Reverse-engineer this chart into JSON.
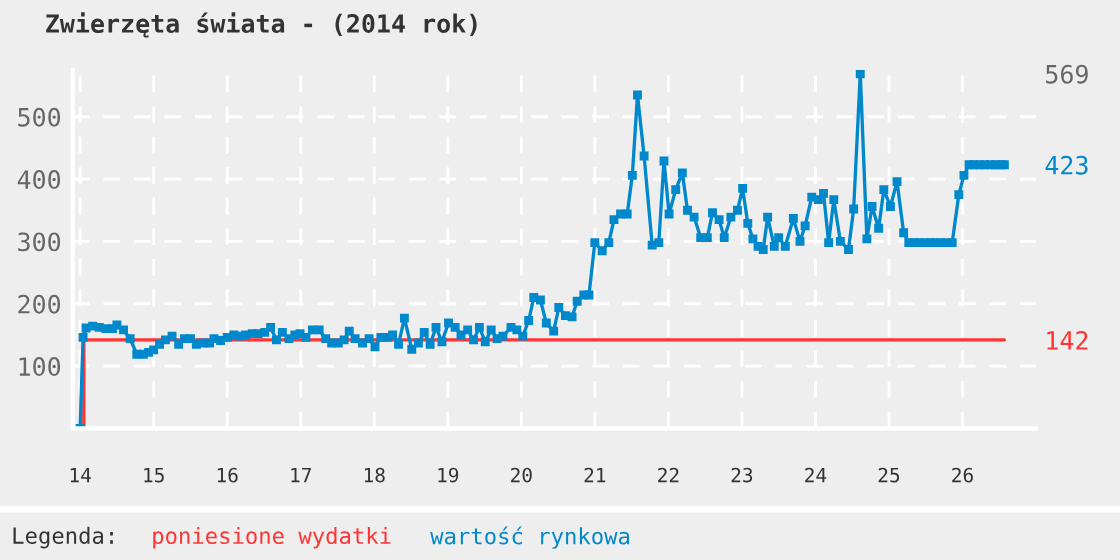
{
  "chart_data": {
    "type": "line",
    "title": "Zwierzęta świata - (2014 rok)",
    "legend_title": "Legenda:",
    "legend": "bottom",
    "grid": true,
    "marker": "square",
    "xlim": [
      13.9,
      27.0
    ],
    "ylim": [
      0,
      575
    ],
    "xticks": [
      14,
      15,
      16,
      17,
      18,
      19,
      20,
      21,
      22,
      23,
      24,
      25,
      26
    ],
    "yticks": [
      100,
      200,
      300,
      400,
      500
    ],
    "series": [
      {
        "name": "poniesione wydatki",
        "color": "#ff3333",
        "marker": "none",
        "x": [
          14.05,
          14.05,
          26.57
        ],
        "values": [
          0,
          142,
          142
        ]
      },
      {
        "name": "wartość rynkowa",
        "color": "#0088cc",
        "x": [
          14.0,
          14.04,
          14.08,
          14.17,
          14.26,
          14.35,
          14.44,
          14.5,
          14.59,
          14.68,
          14.77,
          14.86,
          14.93,
          15.0,
          15.08,
          15.16,
          15.25,
          15.34,
          15.42,
          15.5,
          15.58,
          15.67,
          15.76,
          15.82,
          15.91,
          16.0,
          16.09,
          16.18,
          16.25,
          16.34,
          16.42,
          16.51,
          16.59,
          16.67,
          16.75,
          16.84,
          16.92,
          16.99,
          17.07,
          17.16,
          17.25,
          17.34,
          17.42,
          17.51,
          17.59,
          17.66,
          17.74,
          17.84,
          17.93,
          18.01,
          18.09,
          18.18,
          18.25,
          18.33,
          18.41,
          18.51,
          18.6,
          18.68,
          18.76,
          18.84,
          18.92,
          19.01,
          19.1,
          19.18,
          19.27,
          19.35,
          19.43,
          19.51,
          19.59,
          19.67,
          19.75,
          19.86,
          19.94,
          20.02,
          20.1,
          20.17,
          20.26,
          20.34,
          20.44,
          20.51,
          20.6,
          20.69,
          20.76,
          20.85,
          20.92,
          21.0,
          21.1,
          21.19,
          21.26,
          21.35,
          21.44,
          21.51,
          21.58,
          21.67,
          21.78,
          21.87,
          21.94,
          22.01,
          22.1,
          22.19,
          22.26,
          22.35,
          22.44,
          22.53,
          22.6,
          22.69,
          22.76,
          22.85,
          22.94,
          23.01,
          23.08,
          23.15,
          23.22,
          23.29,
          23.35,
          23.44,
          23.5,
          23.59,
          23.7,
          23.79,
          23.86,
          23.95,
          24.04,
          24.11,
          24.18,
          24.25,
          24.34,
          24.45,
          24.52,
          24.61,
          24.7,
          24.77,
          24.86,
          24.93,
          25.02,
          25.11,
          25.2,
          25.27,
          25.34,
          25.41,
          25.49,
          25.56,
          25.63,
          25.7,
          25.77,
          25.86,
          25.95,
          26.02,
          26.09,
          26.16,
          26.23,
          26.3,
          26.38,
          26.45,
          26.52,
          26.57
        ],
        "values": [
          0,
          146,
          161,
          164,
          162,
          160,
          160,
          166,
          158,
          144,
          119,
          119,
          122,
          126,
          135,
          142,
          148,
          135,
          144,
          144,
          135,
          137,
          137,
          144,
          141,
          146,
          150,
          148,
          150,
          152,
          152,
          154,
          162,
          142,
          154,
          144,
          150,
          152,
          146,
          158,
          158,
          144,
          137,
          137,
          142,
          156,
          144,
          137,
          144,
          131,
          146,
          146,
          150,
          135,
          177,
          127,
          137,
          154,
          135,
          162,
          139,
          169,
          162,
          150,
          158,
          142,
          162,
          139,
          158,
          144,
          148,
          162,
          158,
          148,
          173,
          210,
          206,
          169,
          156,
          194,
          181,
          179,
          204,
          214,
          214,
          298,
          285,
          298,
          335,
          344,
          344,
          406,
          535,
          437,
          294,
          298,
          429,
          344,
          383,
          410,
          350,
          339,
          306,
          306,
          346,
          335,
          306,
          339,
          350,
          385,
          329,
          304,
          292,
          287,
          339,
          292,
          306,
          292,
          337,
          300,
          325,
          371,
          367,
          377,
          298,
          367,
          300,
          287,
          352,
          569,
          304,
          356,
          321,
          383,
          356,
          396,
          314,
          298,
          298,
          298,
          298,
          298,
          298,
          298,
          298,
          298,
          375,
          406,
          423,
          423,
          423,
          423,
          423,
          423,
          423,
          423
        ]
      }
    ],
    "y2lim": [
      0,
      575
    ],
    "y2ticks": [
      142,
      423,
      569
    ]
  }
}
